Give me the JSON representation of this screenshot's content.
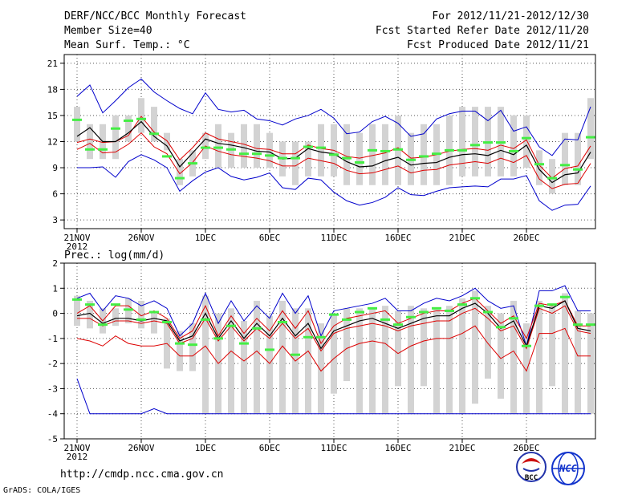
{
  "header": {
    "title": "DERF/NCC/BCC Monthly Forecast",
    "member": "Member Size=40",
    "variable": "Mean Surf. Temp.: °C",
    "period": "For 2012/11/21-2012/12/30",
    "started": "Fcst Started Refer Date 2012/11/20",
    "produced": "Fcst Produced Date 2012/11/21"
  },
  "footer": {
    "url": "http://cmdp.ncc.cma.gov.cn",
    "credit": "GrADS: COLA/IGES",
    "bcc_logo": "BCC",
    "ncc_logo": "NCC"
  },
  "colors": {
    "max_min": "#0000cc",
    "quartile": "#dd0000",
    "median": "#000000",
    "box": "#d3d3d3",
    "climatology": "#44ee44",
    "grid": "#555555"
  },
  "chart_data": [
    {
      "type": "line",
      "title": "Mean Surf. Temp.: °C",
      "ylabel": "°C",
      "ylim": [
        2,
        22
      ],
      "yticks": [
        3,
        6,
        9,
        12,
        15,
        18,
        21
      ],
      "xticks": [
        {
          "day": 0,
          "label": "21NOV",
          "sub": "2012"
        },
        {
          "day": 5,
          "label": "26NOV",
          "sub": ""
        },
        {
          "day": 10,
          "label": "1DEC",
          "sub": ""
        },
        {
          "day": 15,
          "label": "6DEC",
          "sub": ""
        },
        {
          "day": 20,
          "label": "11DEC",
          "sub": ""
        },
        {
          "day": 25,
          "label": "16DEC",
          "sub": ""
        },
        {
          "day": 30,
          "label": "21DEC",
          "sub": ""
        },
        {
          "day": 35,
          "label": "26DEC",
          "sub": ""
        }
      ],
      "days": 40,
      "series": [
        {
          "name": "max",
          "values": [
            17.2,
            18.5,
            15.3,
            16.7,
            18.2,
            19.2,
            17.7,
            16.7,
            15.8,
            15.2,
            17.6,
            15.7,
            15.4,
            15.6,
            14.6,
            14.4,
            13.9,
            14.6,
            15.0,
            15.7,
            14.7,
            12.9,
            13.1,
            14.3,
            14.9,
            14.1,
            12.6,
            12.9,
            14.6,
            15.2,
            15.5,
            15.5,
            14.4,
            15.6,
            13.2,
            13.7,
            11.4,
            10.4,
            12.3,
            12.2,
            16.0
          ]
        },
        {
          "name": "upper",
          "values": [
            11.9,
            12.3,
            11.9,
            12.0,
            12.7,
            14.9,
            13.1,
            12.1,
            9.9,
            11.3,
            13.0,
            12.3,
            12.0,
            11.7,
            11.2,
            11.1,
            10.6,
            10.6,
            11.6,
            11.2,
            11.0,
            10.3,
            10.1,
            10.4,
            10.7,
            11.3,
            10.1,
            10.2,
            10.5,
            10.9,
            11.1,
            11.2,
            11.0,
            11.6,
            11.2,
            12.2,
            9.3,
            7.8,
            8.9,
            9.2,
            11.5
          ]
        },
        {
          "name": "median",
          "values": [
            12.6,
            13.6,
            12.0,
            12.0,
            13.0,
            14.3,
            12.6,
            11.5,
            9.1,
            10.7,
            12.3,
            11.8,
            11.6,
            11.3,
            10.9,
            10.8,
            10.0,
            10.1,
            11.2,
            10.8,
            10.6,
            9.7,
            9.1,
            9.2,
            9.8,
            10.2,
            9.3,
            9.5,
            9.6,
            10.2,
            10.5,
            10.6,
            10.4,
            11.0,
            10.5,
            11.6,
            8.8,
            7.3,
            8.2,
            8.4,
            10.8
          ]
        },
        {
          "name": "lower",
          "values": [
            11.1,
            11.8,
            10.7,
            10.8,
            11.7,
            13.0,
            11.4,
            10.6,
            8.3,
            9.6,
            11.5,
            10.9,
            10.5,
            10.3,
            10.1,
            9.8,
            9.2,
            9.2,
            10.1,
            9.8,
            9.5,
            8.7,
            8.3,
            8.4,
            8.8,
            9.2,
            8.4,
            8.7,
            8.8,
            9.3,
            9.5,
            9.7,
            9.5,
            10.1,
            9.6,
            10.4,
            7.7,
            6.6,
            7.1,
            7.2,
            9.5
          ]
        },
        {
          "name": "min",
          "values": [
            9.0,
            9.0,
            9.1,
            7.9,
            9.7,
            10.5,
            9.9,
            9.0,
            6.3,
            7.5,
            8.5,
            9.0,
            8.0,
            7.6,
            7.9,
            8.4,
            6.7,
            6.5,
            7.8,
            7.6,
            6.2,
            5.2,
            4.7,
            5.0,
            5.6,
            6.7,
            5.9,
            5.8,
            6.3,
            6.7,
            6.8,
            6.9,
            6.8,
            7.7,
            7.7,
            8.1,
            5.2,
            4.1,
            4.7,
            4.8,
            6.9
          ]
        },
        {
          "name": "box_top",
          "values": [
            16,
            14,
            14,
            15,
            15,
            17,
            16,
            13,
            10,
            11,
            13,
            14,
            13,
            14,
            14,
            13,
            12,
            12,
            12,
            14,
            14,
            14,
            13,
            14,
            14,
            15,
            13,
            14,
            14,
            15,
            16,
            16,
            16,
            16,
            15,
            15,
            11,
            10,
            13,
            13,
            17
          ]
        },
        {
          "name": "box_bottom",
          "values": [
            12,
            10,
            10,
            10,
            12,
            13,
            12,
            11,
            7,
            8,
            10,
            9,
            9,
            9,
            9,
            9,
            8,
            7,
            8,
            8,
            8,
            7,
            7,
            7,
            7,
            7,
            7,
            7,
            7,
            7,
            8,
            8,
            8,
            8,
            8,
            9,
            7,
            6,
            7,
            7,
            10
          ]
        },
        {
          "name": "climatology",
          "values": [
            14.5,
            11.1,
            11.1,
            13.5,
            14.4,
            14.6,
            12.9,
            10.3,
            7.8,
            9.5,
            11.3,
            11.3,
            11.1,
            10.6,
            10.6,
            10.4,
            10.1,
            10.1,
            11.4,
            11.3,
            10.5,
            10.1,
            9.6,
            11.0,
            10.9,
            11.1,
            9.9,
            10.3,
            10.6,
            11.0,
            11.0,
            11.6,
            11.9,
            11.9,
            10.9,
            12.4,
            9.4,
            7.8,
            9.3,
            8.8,
            12.5
          ]
        }
      ]
    },
    {
      "type": "line",
      "title": "Prec.: log(mm/d)",
      "ylabel": "log(mm/d)",
      "ylim": [
        -5,
        2
      ],
      "yticks": [
        -5,
        -4,
        -3,
        -2,
        -1,
        0,
        1,
        2
      ],
      "xticks": [
        {
          "day": 0,
          "label": "21NOV",
          "sub": "2012"
        },
        {
          "day": 5,
          "label": "26NOV",
          "sub": ""
        },
        {
          "day": 10,
          "label": "1DEC",
          "sub": ""
        },
        {
          "day": 15,
          "label": "6DEC",
          "sub": ""
        },
        {
          "day": 20,
          "label": "11DEC",
          "sub": ""
        },
        {
          "day": 25,
          "label": "16DEC",
          "sub": ""
        },
        {
          "day": 30,
          "label": "21DEC",
          "sub": ""
        },
        {
          "day": 35,
          "label": "26DEC",
          "sub": ""
        }
      ],
      "days": 40,
      "series": [
        {
          "name": "max",
          "values": [
            0.6,
            0.8,
            0.1,
            0.7,
            0.6,
            0.3,
            0.5,
            0.2,
            -0.9,
            -0.4,
            0.8,
            -0.4,
            0.5,
            -0.3,
            0.3,
            -0.2,
            0.8,
            0.0,
            0.7,
            -0.9,
            0.1,
            0.2,
            0.3,
            0.4,
            0.6,
            0.1,
            0.1,
            0.4,
            0.6,
            0.5,
            0.7,
            1.0,
            0.5,
            0.2,
            0.3,
            -1.3,
            0.9,
            0.9,
            1.1,
            0.1,
            0.1
          ]
        },
        {
          "name": "upper",
          "values": [
            0.0,
            0.3,
            -0.3,
            0.3,
            0.3,
            -0.1,
            0.1,
            -0.2,
            -1.0,
            -0.7,
            0.3,
            -0.9,
            -0.1,
            -0.8,
            -0.2,
            -0.7,
            0.1,
            -0.6,
            0.1,
            -1.2,
            -0.5,
            -0.2,
            -0.1,
            0.0,
            0.1,
            -0.4,
            -0.2,
            0.0,
            0.1,
            0.1,
            0.4,
            0.6,
            0.1,
            -0.4,
            -0.1,
            -1.0,
            0.4,
            0.3,
            0.5,
            -0.5,
            -0.5
          ]
        },
        {
          "name": "median",
          "values": [
            -0.1,
            0.0,
            -0.4,
            -0.2,
            -0.2,
            -0.3,
            -0.2,
            -0.3,
            -1.1,
            -0.9,
            0.0,
            -1.0,
            -0.3,
            -1.0,
            -0.4,
            -0.9,
            -0.2,
            -0.9,
            -0.4,
            -1.4,
            -0.7,
            -0.5,
            -0.3,
            -0.2,
            -0.4,
            -0.6,
            -0.4,
            -0.2,
            -0.1,
            -0.1,
            0.2,
            0.4,
            0.0,
            -0.6,
            -0.3,
            -1.3,
            0.3,
            0.2,
            0.5,
            -0.6,
            -0.7
          ]
        },
        {
          "name": "lower",
          "values": [
            -0.2,
            -0.2,
            -0.5,
            -0.3,
            -0.3,
            -0.4,
            -0.3,
            -0.4,
            -1.2,
            -1.0,
            -0.2,
            -1.1,
            -0.5,
            -1.1,
            -0.6,
            -1.0,
            -0.4,
            -1.0,
            -0.6,
            -1.5,
            -0.8,
            -0.6,
            -0.5,
            -0.4,
            -0.5,
            -0.7,
            -0.5,
            -0.4,
            -0.3,
            -0.3,
            0.0,
            0.2,
            -0.2,
            -0.7,
            -0.5,
            -1.4,
            0.2,
            0.0,
            0.3,
            -0.7,
            -0.8
          ]
        },
        {
          "name": "min",
          "values": [
            -2.6,
            -4.0,
            -4.0,
            -4.0,
            -4.0,
            -4.0,
            -3.8,
            -4.0,
            -4.0,
            -4.0,
            -4.0,
            -4.0,
            -4.0,
            -4.0,
            -4.0,
            -4.0,
            -4.0,
            -4.0,
            -4.0,
            -4.0,
            -4.0,
            -4.0,
            -4.0,
            -4.0,
            -4.0,
            -4.0,
            -4.0,
            -4.0,
            -4.0,
            -4.0,
            -4.0,
            -4.0,
            -4.0,
            -4.0,
            -4.0,
            -4.0,
            -4.0,
            -4.0,
            -4.0,
            -4.0,
            -4.0
          ]
        },
        {
          "name": "p10",
          "values": [
            -1.0,
            -1.1,
            -1.3,
            -0.9,
            -1.2,
            -1.3,
            -1.3,
            -1.2,
            -1.7,
            -1.7,
            -1.3,
            -2.0,
            -1.5,
            -1.9,
            -1.5,
            -2.0,
            -1.3,
            -1.9,
            -1.5,
            -2.3,
            -1.8,
            -1.4,
            -1.2,
            -1.1,
            -1.2,
            -1.6,
            -1.3,
            -1.1,
            -1.0,
            -1.0,
            -0.8,
            -0.5,
            -1.2,
            -1.8,
            -1.5,
            -2.3,
            -0.8,
            -0.8,
            -0.6,
            -1.7,
            -1.7
          ]
        },
        {
          "name": "box_top",
          "values": [
            0.7,
            0.5,
            0.2,
            0.2,
            0.6,
            0.5,
            0.0,
            -0.2,
            -0.7,
            -0.4,
            0.7,
            0.0,
            0.2,
            -0.3,
            0.5,
            -0.1,
            0.5,
            0.2,
            0.2,
            -0.4,
            0.0,
            0.2,
            0.2,
            0.2,
            0.3,
            0.1,
            0.3,
            0.2,
            0.2,
            0.3,
            0.6,
            0.9,
            0.3,
            0.0,
            0.5,
            -0.4,
            0.5,
            0.3,
            0.8,
            0.1,
            0.0
          ]
        },
        {
          "name": "box_bottom",
          "values": [
            -0.5,
            -0.6,
            -0.8,
            -0.5,
            -0.4,
            -0.6,
            -0.8,
            -2.2,
            -2.3,
            -2.3,
            -4.0,
            -4.0,
            -4.0,
            -4.0,
            -4.0,
            -4.0,
            -4.0,
            -4.0,
            -4.0,
            -4.0,
            -3.2,
            -2.7,
            -4.0,
            -4.0,
            -4.0,
            -2.9,
            -4.0,
            -2.9,
            -4.0,
            -4.0,
            -4.0,
            -3.6,
            -2.6,
            -3.4,
            -4.0,
            -4.0,
            -4.0,
            -2.9,
            -4.0,
            -4.0,
            -4.0
          ]
        },
        {
          "name": "climatology",
          "values": [
            0.55,
            0.35,
            -0.45,
            0.35,
            0.15,
            -0.25,
            0.05,
            -0.35,
            -1.2,
            -1.25,
            -0.25,
            -1.0,
            -0.5,
            -1.2,
            -0.6,
            -1.45,
            -0.35,
            -1.65,
            -0.95,
            -0.95,
            -0.05,
            -0.25,
            0.05,
            0.2,
            -0.25,
            -0.45,
            -0.15,
            0.05,
            0.2,
            0.1,
            0.35,
            0.6,
            0.05,
            -0.55,
            -0.2,
            -1.3,
            0.3,
            0.35,
            0.65,
            -0.45,
            -0.45
          ]
        }
      ]
    }
  ]
}
